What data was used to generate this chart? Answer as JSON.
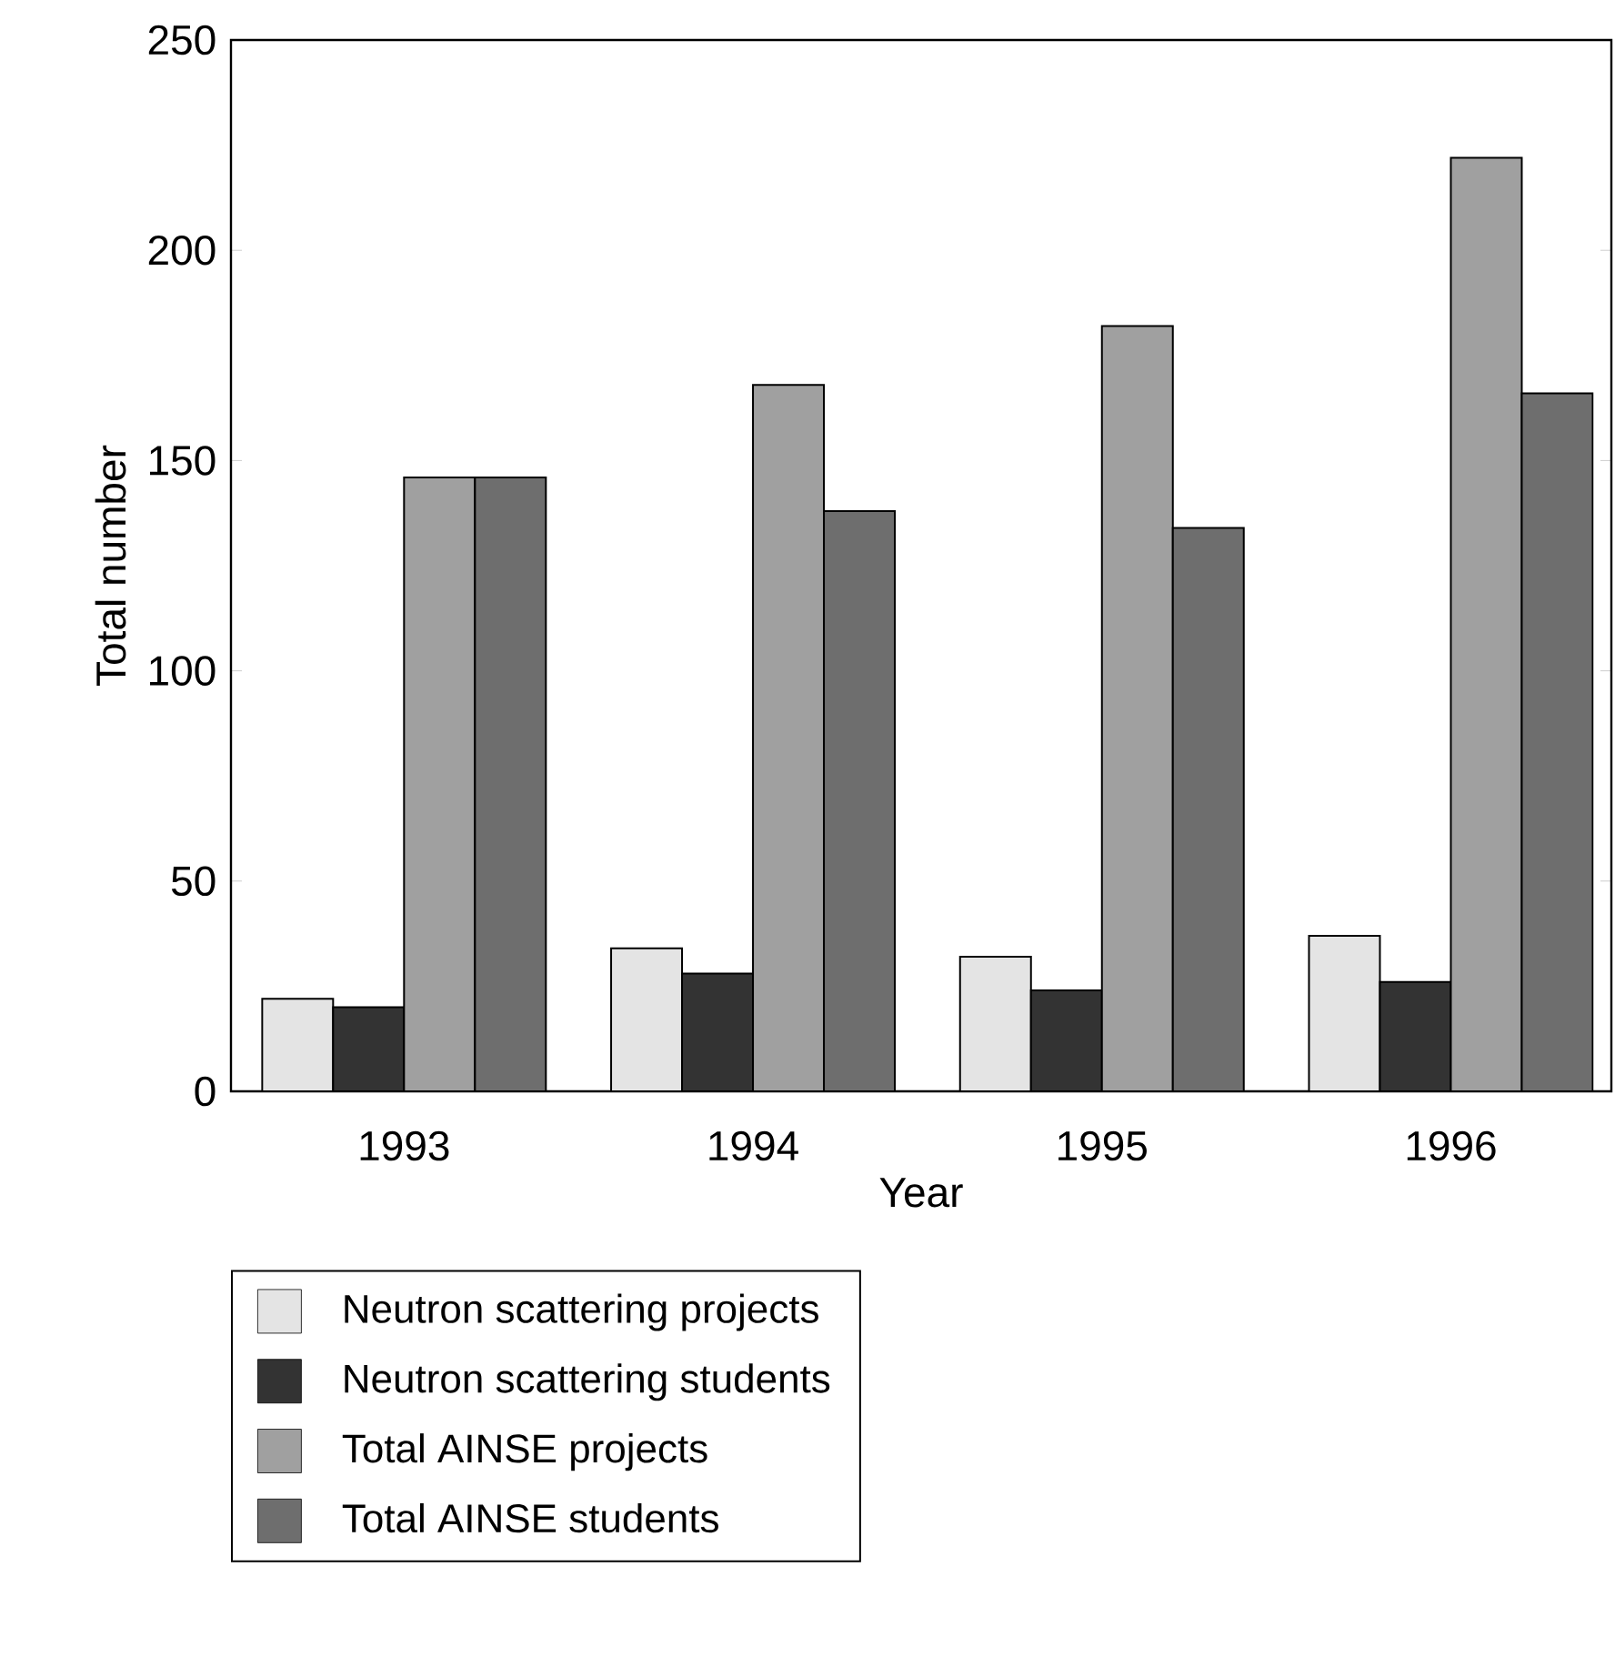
{
  "chart_data": {
    "type": "bar",
    "xlabel": "Year",
    "ylabel": "Total number",
    "categories": [
      "1993",
      "1994",
      "1995",
      "1996"
    ],
    "series": [
      {
        "name": "Neutron scattering projects",
        "color": "#e4e4e4",
        "values": [
          22,
          34,
          32,
          37
        ]
      },
      {
        "name": "Neutron scattering students",
        "color": "#333333",
        "values": [
          20,
          28,
          24,
          26
        ]
      },
      {
        "name": "Total AINSE projects",
        "color": "#a0a0a0",
        "values": [
          146,
          168,
          182,
          222
        ]
      },
      {
        "name": "Total AINSE students",
        "color": "#6e6e6e",
        "values": [
          146,
          138,
          134,
          166
        ]
      }
    ],
    "ylim": [
      0,
      250
    ],
    "yticks": [
      0,
      50,
      100,
      150,
      200,
      250
    ],
    "grid": false,
    "legend": "bottom"
  }
}
